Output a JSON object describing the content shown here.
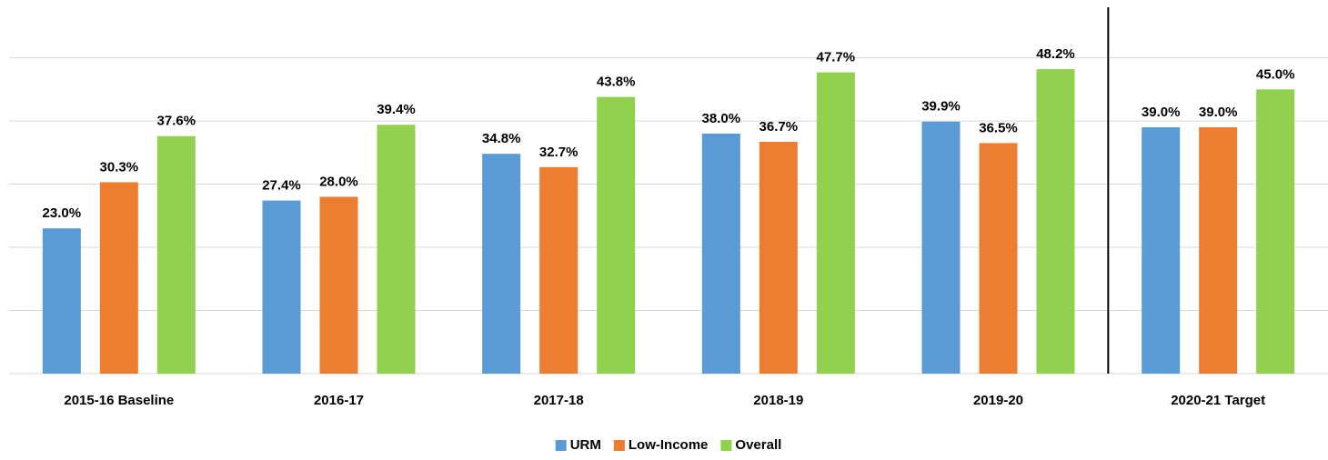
{
  "chart_data": {
    "type": "bar",
    "categories": [
      "2015-16 Baseline",
      "2016-17",
      "2017-18",
      "2018-19",
      "2019-20",
      "2020-21 Target"
    ],
    "series": [
      {
        "name": "URM",
        "color": "#5b9bd5",
        "values": [
          23.0,
          27.4,
          34.8,
          38.0,
          39.9,
          39.0
        ],
        "value_labels": [
          "23.0%",
          "27.4%",
          "34.8%",
          "38.0%",
          "39.9%",
          "39.0%"
        ]
      },
      {
        "name": "Low-Income",
        "color": "#ed7d31",
        "values": [
          30.3,
          28.0,
          32.7,
          36.7,
          36.5,
          39.0
        ],
        "value_labels": [
          "30.3%",
          "28.0%",
          "32.7%",
          "36.7%",
          "36.5%",
          "39.0%"
        ]
      },
      {
        "name": "Overall",
        "color": "#92d050",
        "values": [
          37.6,
          39.4,
          43.8,
          47.7,
          48.2,
          45.0
        ],
        "value_labels": [
          "37.6%",
          "39.4%",
          "43.8%",
          "47.7%",
          "48.2%",
          "45.0%"
        ]
      }
    ],
    "ylim": [
      0,
      58
    ],
    "yticks": [
      0,
      10,
      20,
      30,
      40,
      50
    ],
    "grid": true,
    "legend": "bottom"
  }
}
